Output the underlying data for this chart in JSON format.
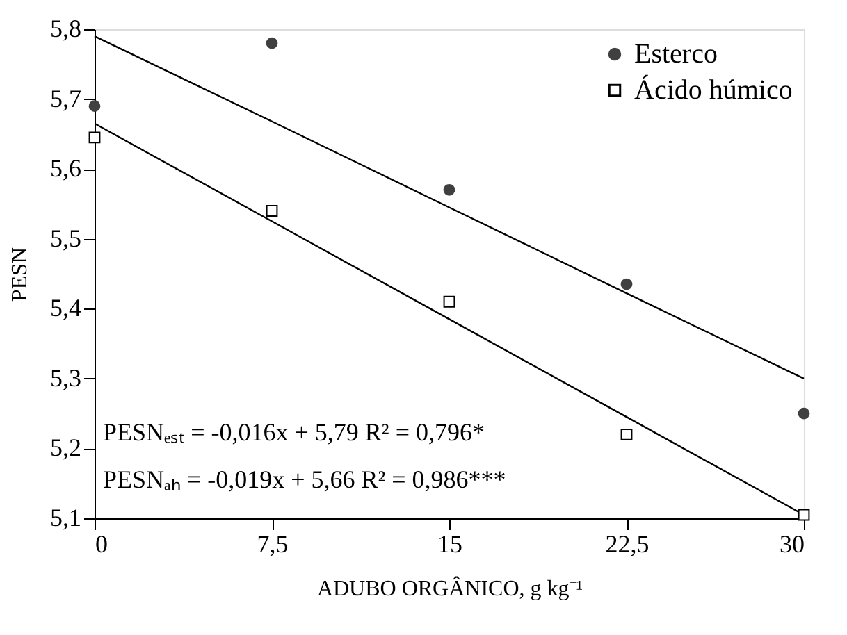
{
  "chart_data": {
    "type": "scatter",
    "xlabel": "ADUBO ORGÂNICO, g kg⁻¹",
    "ylabel": "PESN",
    "xlim": [
      0,
      30
    ],
    "ylim": [
      5.1,
      5.8
    ],
    "xticks": [
      0,
      {
        "value": 7.5,
        "label": "7,5"
      },
      15,
      {
        "value": 22.5,
        "label": "22,5"
      },
      30
    ],
    "yticks": [
      {
        "value": 5.1,
        "label": "5,1"
      },
      {
        "value": 5.2,
        "label": "5,2"
      },
      {
        "value": 5.3,
        "label": "5,3"
      },
      {
        "value": 5.4,
        "label": "5,4"
      },
      {
        "value": 5.5,
        "label": "5,5"
      },
      {
        "value": 5.6,
        "label": "5,6"
      },
      {
        "value": 5.7,
        "label": "5,7"
      },
      {
        "value": 5.8,
        "label": "5,8"
      }
    ],
    "x": [
      0,
      7.5,
      15,
      22.5,
      30
    ],
    "series": [
      {
        "name": "Esterco",
        "marker": "circle",
        "color": "#404040",
        "values": [
          5.69,
          5.78,
          5.57,
          5.435,
          5.25
        ]
      },
      {
        "name": "Ácido húmico",
        "marker": "square",
        "color": "#000000",
        "values": [
          5.645,
          5.54,
          5.41,
          5.22,
          5.105
        ]
      },
      {
        "type": "line",
        "color": "#000000",
        "values": [
          5.79,
          5.668,
          5.545,
          5.422,
          5.3
        ]
      },
      {
        "type": "line",
        "color": "#000000",
        "values": [
          5.665,
          5.525,
          5.385,
          5.245,
          5.105
        ]
      }
    ],
    "annotations": [
      "PESNₑₛₜ = -0,016x + 5,79  R² = 0,796*",
      "PESNₐₕ = -0,019x + 5,66  R² = 0,986***"
    ],
    "legend": "top right",
    "grid": false
  }
}
